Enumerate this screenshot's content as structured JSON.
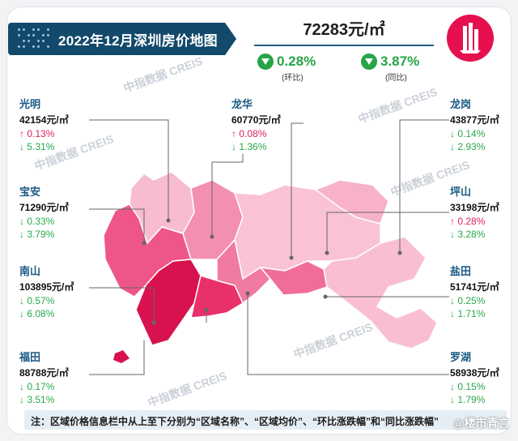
{
  "title": "2022年12月深圳房价地图",
  "overall": {
    "price": "72283元/㎡",
    "mom_value": "0.28%",
    "mom_label": "(环比)",
    "yoy_value": "3.87%",
    "yoy_label": "(同比)",
    "direction": "down",
    "up_color": "#e0215a",
    "down_color": "#2aa84a"
  },
  "logo_icon": "city-skyline-icon",
  "districts": {
    "guangming": {
      "name": "光明",
      "price": "42154元/㎡",
      "mom": "↑ 0.13%",
      "mom_dir": "up",
      "yoy": "↓ 5.31%",
      "yoy_dir": "down"
    },
    "longhua": {
      "name": "龙华",
      "price": "60770元/㎡",
      "mom": "↑ 0.08%",
      "mom_dir": "up",
      "yoy": "↓ 1.36%",
      "yoy_dir": "down"
    },
    "longgang": {
      "name": "龙岗",
      "price": "43877元/㎡",
      "mom": "↓ 0.14%",
      "mom_dir": "down",
      "yoy": "↓ 2.93%",
      "yoy_dir": "down"
    },
    "baoan": {
      "name": "宝安",
      "price": "71290元/㎡",
      "mom": "↓ 0.33%",
      "mom_dir": "down",
      "yoy": "↓ 3.79%",
      "yoy_dir": "down"
    },
    "pingshan": {
      "name": "坪山",
      "price": "33198元/㎡",
      "mom": "↑ 0.28%",
      "mom_dir": "up",
      "yoy": "↓ 3.28%",
      "yoy_dir": "down"
    },
    "nanshan": {
      "name": "南山",
      "price": "103895元/㎡",
      "mom": "↓ 0.57%",
      "mom_dir": "down",
      "yoy": "↓ 6.08%",
      "yoy_dir": "down"
    },
    "yantian": {
      "name": "盐田",
      "price": "51741元/㎡",
      "mom": "↓ 0.25%",
      "mom_dir": "down",
      "yoy": "↓ 1.71%",
      "yoy_dir": "down"
    },
    "futian": {
      "name": "福田",
      "price": "88788元/㎡",
      "mom": "↓ 0.17%",
      "mom_dir": "down",
      "yoy": "↓ 3.51%",
      "yoy_dir": "down"
    },
    "luohu": {
      "name": "罗湖",
      "price": "58938元/㎡",
      "mom": "↓ 0.15%",
      "mom_dir": "down",
      "yoy": "↓ 1.79%",
      "yoy_dir": "down"
    }
  },
  "map_colors": {
    "nanshan": "#d8124e",
    "futian": "#e8306a",
    "baoan": "#ee5588",
    "luohu": "#f07aa0",
    "longhua": "#f390b0",
    "yantian": "#f06d98",
    "guangming": "#f7bccf",
    "longgang": "#f9c3d4",
    "pingshan": "#f7b2c7",
    "dapeng": "#f9bfd1"
  },
  "watermark": "中指数据 CREIS",
  "note": "注：区域价格信息栏中从上至下分别为“区域名称”、“区域均价”、“环比涨跌幅”和“同比涨跌幅”",
  "credit": "@楼市青言"
}
